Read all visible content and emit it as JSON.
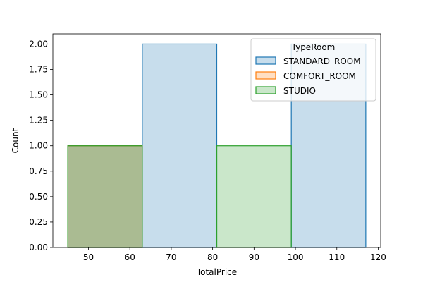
{
  "chart_data": {
    "type": "histogram",
    "xlabel": "TotalPrice",
    "ylabel": "Count",
    "xlim": [
      41.4,
      120.6
    ],
    "ylim": [
      0,
      2.1
    ],
    "x_ticks": [
      50,
      60,
      70,
      80,
      90,
      100,
      110,
      120
    ],
    "y_ticks": [
      0.0,
      0.25,
      0.5,
      0.75,
      1.0,
      1.25,
      1.5,
      1.75,
      2.0
    ],
    "y_tick_labels": [
      "0.00",
      "0.25",
      "0.50",
      "0.75",
      "1.00",
      "1.25",
      "1.50",
      "1.75",
      "2.00"
    ],
    "legend": {
      "title": "TypeRoom",
      "placement": "top-right"
    },
    "series": [
      {
        "name": "STANDARD_ROOM",
        "fill": "#1f77b4",
        "stroke": "#1f77b4",
        "bins": [
          {
            "x0": 45,
            "x1": 63,
            "count": 1
          },
          {
            "x0": 63,
            "x1": 81,
            "count": 2
          },
          {
            "x0": 81,
            "x1": 99,
            "count": 0
          },
          {
            "x0": 99,
            "x1": 117,
            "count": 2
          }
        ]
      },
      {
        "name": "COMFORT_ROOM",
        "fill": "#ff7f0e",
        "stroke": "#ff7f0e",
        "bins": [
          {
            "x0": 45,
            "x1": 63,
            "count": 1
          },
          {
            "x0": 63,
            "x1": 81,
            "count": 0
          },
          {
            "x0": 81,
            "x1": 99,
            "count": 0
          },
          {
            "x0": 99,
            "x1": 117,
            "count": 0
          }
        ]
      },
      {
        "name": "STUDIO",
        "fill": "#2ca02c",
        "stroke": "#2ca02c",
        "bins": [
          {
            "x0": 45,
            "x1": 63,
            "count": 1
          },
          {
            "x0": 63,
            "x1": 81,
            "count": 0
          },
          {
            "x0": 81,
            "x1": 99,
            "count": 1
          },
          {
            "x0": 99,
            "x1": 117,
            "count": 0
          }
        ]
      }
    ]
  }
}
